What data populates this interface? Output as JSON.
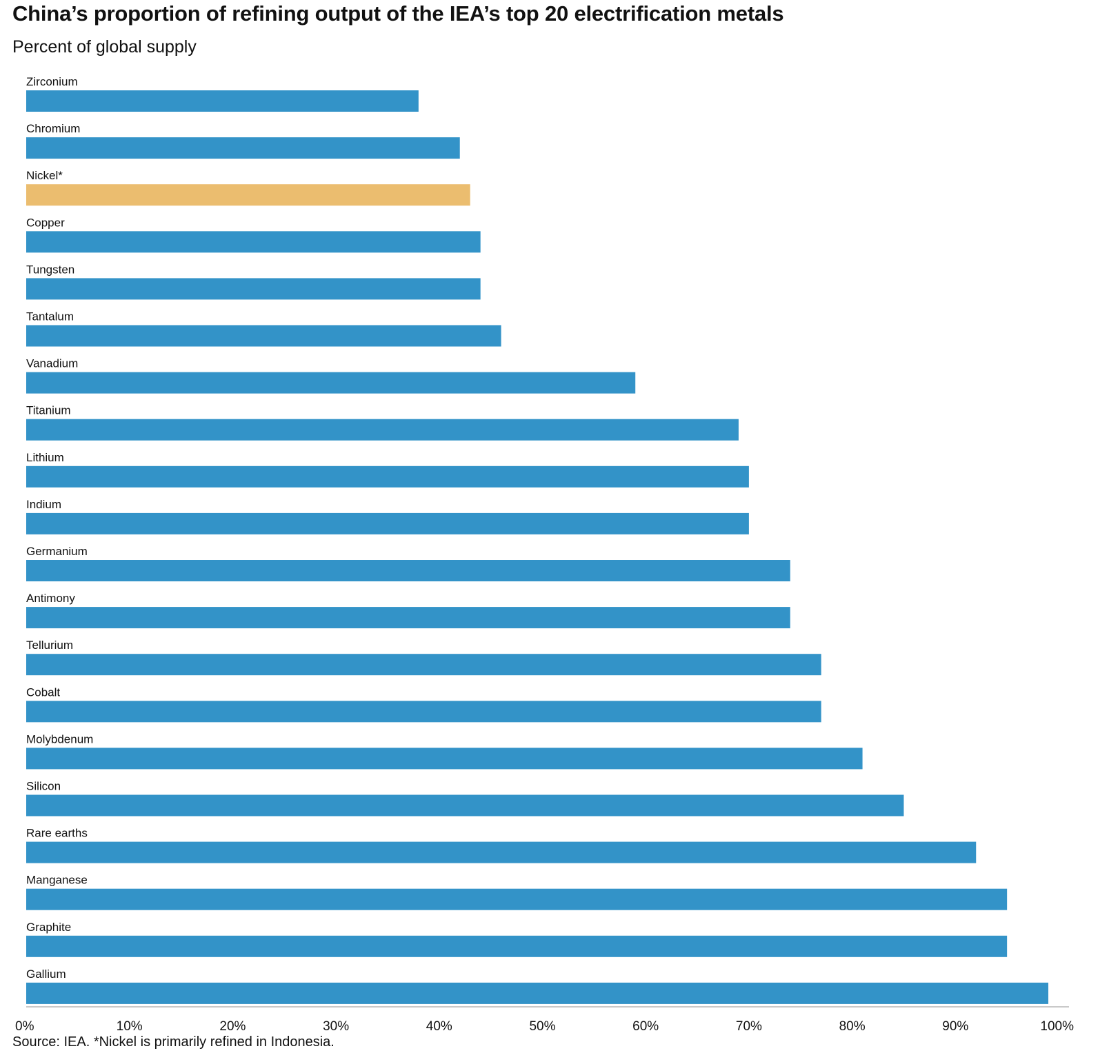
{
  "header": {
    "title": "China’s proportion of refining output of the IEA’s top 20 electrification metals",
    "subtitle": "Percent of global supply"
  },
  "footer": {
    "source": "Source: IEA. *Nickel is primarily refined in Indonesia."
  },
  "colors": {
    "bar_default": "#3393c8",
    "bar_highlight": "#ebbd6f",
    "axis": "#c9c9c9"
  },
  "chart_data": {
    "type": "bar",
    "orientation": "horizontal",
    "title": "China’s proportion of refining output of the IEA’s top 20 electrification metals",
    "subtitle": "Percent of global supply",
    "xlabel": "",
    "ylabel": "",
    "xlim": [
      0,
      100
    ],
    "grid": false,
    "categories": [
      "Zirconium",
      "Chromium",
      "Nickel*",
      "Copper",
      "Tungsten",
      "Tantalum",
      "Vanadium",
      "Titanium",
      "Lithium",
      "Indium",
      "Germanium",
      "Antimony",
      "Tellurium",
      "Cobalt",
      "Molybdenum",
      "Silicon",
      "Rare earths",
      "Manganese",
      "Graphite",
      "Gallium"
    ],
    "values": [
      38,
      42,
      43,
      44,
      44,
      46,
      59,
      69,
      70,
      70,
      74,
      74,
      77,
      77,
      81,
      85,
      92,
      95,
      95,
      99
    ],
    "highlight": [
      "Nickel*"
    ],
    "ticks": [
      0,
      10,
      20,
      30,
      40,
      50,
      60,
      70,
      80,
      90,
      100
    ],
    "tick_labels": [
      "0%",
      "10%",
      "20%",
      "30%",
      "40%",
      "50%",
      "60%",
      "70%",
      "80%",
      "90%",
      "100%"
    ]
  }
}
